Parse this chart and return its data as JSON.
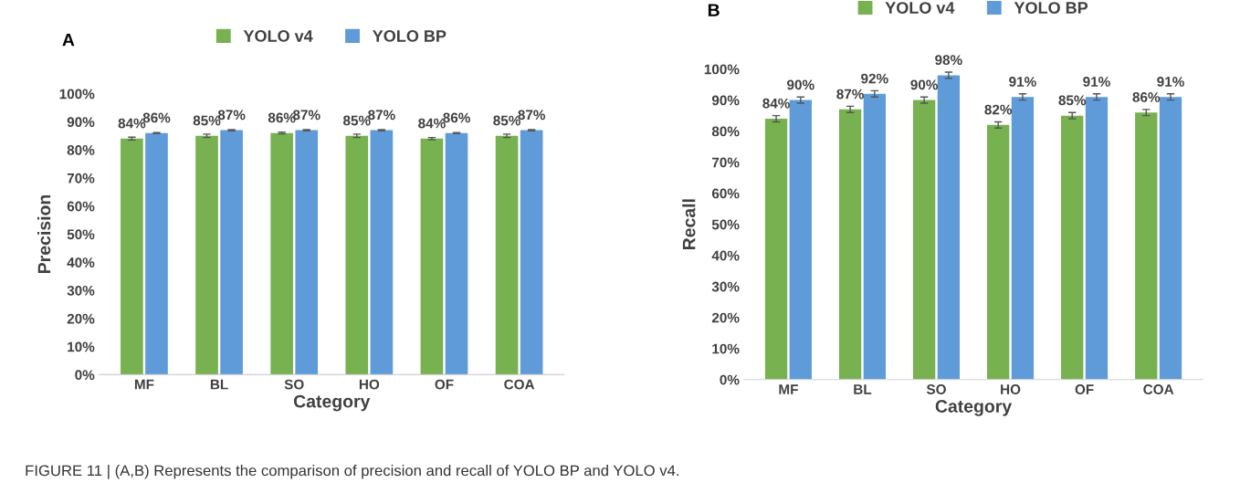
{
  "chart_data": [
    {
      "type": "bar",
      "annotations": [
        "A",
        "FIGURE 11 | (A,B) Represents the comparison of precision and recall of YOLO BP and YOLO v4."
      ],
      "xlabel": "Category",
      "ylabel": "Precision",
      "categories": [
        "MF",
        "BL",
        "SO",
        "HO",
        "OF",
        "COA"
      ],
      "series": [
        {
          "name": "YOLO v4",
          "color": "#77b150",
          "values": [
            84,
            85,
            86,
            85,
            84,
            85
          ],
          "errors": [
            0.5,
            0.6,
            0.3,
            0.6,
            0.4,
            0.6
          ],
          "value_labels": [
            "84%",
            "85%",
            "86%",
            "85%",
            "84%",
            "85%"
          ]
        },
        {
          "name": "YOLO BP",
          "color": "#5f9bd8",
          "values": [
            86,
            87,
            87,
            87,
            86,
            87
          ],
          "errors": [
            0.2,
            0.2,
            0.2,
            0.2,
            0.2,
            0.2
          ],
          "value_labels": [
            "86%",
            "87%",
            "87%",
            "87%",
            "86%",
            "87%"
          ]
        }
      ],
      "ylim": [
        0,
        100
      ],
      "yticks": [
        {
          "value": 0,
          "label": "0%"
        },
        {
          "value": 10,
          "label": "10%"
        },
        {
          "value": 20,
          "label": "20%"
        },
        {
          "value": 30,
          "label": "30%"
        },
        {
          "value": 40,
          "label": "40%"
        },
        {
          "value": 50,
          "label": "50%"
        },
        {
          "value": 60,
          "label": "60%"
        },
        {
          "value": 70,
          "label": "70%"
        },
        {
          "value": 80,
          "label": "80%"
        },
        {
          "value": 90,
          "label": "90%"
        },
        {
          "value": 100,
          "label": "100%"
        }
      ],
      "legend": "top",
      "grid": false
    },
    {
      "type": "bar",
      "annotations": [
        "B"
      ],
      "xlabel": "Category",
      "ylabel": "Recall",
      "categories": [
        "MF",
        "BL",
        "SO",
        "HO",
        "OF",
        "COA"
      ],
      "series": [
        {
          "name": "YOLO v4",
          "color": "#77b150",
          "values": [
            84,
            87,
            90,
            82,
            85,
            86
          ],
          "errors": [
            1,
            1,
            1,
            1,
            1,
            1
          ],
          "value_labels": [
            "84%",
            "87%",
            "90%",
            "82%",
            "85%",
            "86%"
          ]
        },
        {
          "name": "YOLO BP",
          "color": "#5f9bd8",
          "values": [
            90,
            92,
            98,
            91,
            91,
            91
          ],
          "errors": [
            1,
            1,
            1,
            1,
            1,
            1
          ],
          "value_labels": [
            "90%",
            "92%",
            "98%",
            "91%",
            "91%",
            "91%"
          ]
        }
      ],
      "ylim": [
        0,
        100
      ],
      "yticks": [
        {
          "value": 0,
          "label": "0%"
        },
        {
          "value": 10,
          "label": "10%"
        },
        {
          "value": 20,
          "label": "20%"
        },
        {
          "value": 30,
          "label": "30%"
        },
        {
          "value": 40,
          "label": "40%"
        },
        {
          "value": 50,
          "label": "50%"
        },
        {
          "value": 60,
          "label": "60%"
        },
        {
          "value": 70,
          "label": "70%"
        },
        {
          "value": 80,
          "label": "80%"
        },
        {
          "value": 90,
          "label": "90%"
        },
        {
          "value": 100,
          "label": "100%"
        }
      ],
      "legend": "top",
      "grid": false
    }
  ]
}
